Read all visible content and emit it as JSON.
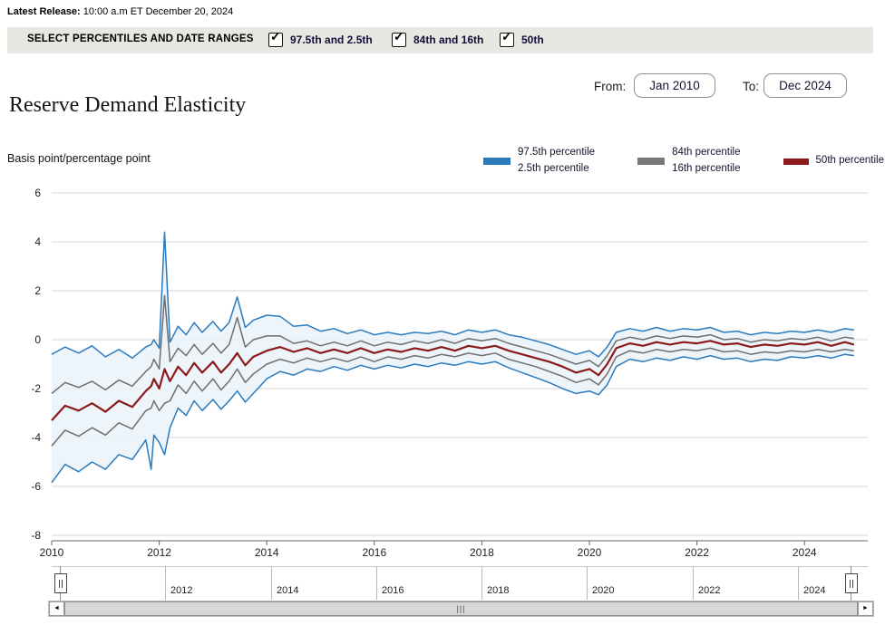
{
  "release": {
    "label": "Latest Release:",
    "value": "10:00 a.m ET December 20, 2024"
  },
  "toolbar": {
    "title": "SELECT PERCENTILES AND DATE RANGES",
    "checkboxes": [
      {
        "label": "97.5th and 2.5th",
        "checked": true
      },
      {
        "label": "84th and 16th",
        "checked": true
      },
      {
        "label": "50th",
        "checked": true
      }
    ]
  },
  "date_range": {
    "from_label": "From:",
    "from_value": "Jan 2010",
    "to_label": "To:",
    "to_value": "Dec 2024"
  },
  "page_title": "Reserve Demand Elasticity",
  "y_axis_unit": "Basis point/percentage point",
  "legend": [
    {
      "line1": "97.5th percentile",
      "line2": "2.5th percentile",
      "color": "#2a7abe"
    },
    {
      "line1": "84th percentile",
      "line2": "16th percentile",
      "color": "#787878"
    },
    {
      "line1": "50th percentile",
      "line2": "",
      "color": "#8a1a1a"
    }
  ],
  "colors": {
    "blue": "#2a7abe",
    "gray": "#6e6e6e",
    "red": "#8a1a1a",
    "band_fill": "#eaf2f9",
    "gridline": "#d4d4d4",
    "axis": "#666666",
    "toolbar_bg": "#e9e7e1"
  },
  "chart_data": {
    "type": "line",
    "title": "Reserve Demand Elasticity",
    "ylabel": "Basis point/percentage point",
    "ylim": [
      -8,
      6
    ],
    "yticks": [
      6,
      4,
      2,
      0,
      -2,
      -4,
      -6,
      -8
    ],
    "xticks": [
      2010,
      2012,
      2014,
      2016,
      2018,
      2020,
      2022,
      2024
    ],
    "xlim": [
      2010,
      2025.2
    ],
    "grid": "horizontal",
    "legend_position": "top-right",
    "x": [
      2010.0,
      2010.25,
      2010.5,
      2010.75,
      2011.0,
      2011.25,
      2011.5,
      2011.75,
      2011.85,
      2011.9,
      2012.0,
      2012.1,
      2012.2,
      2012.35,
      2012.5,
      2012.65,
      2012.8,
      2013.0,
      2013.15,
      2013.3,
      2013.45,
      2013.6,
      2013.75,
      2014.0,
      2014.25,
      2014.5,
      2014.75,
      2015.0,
      2015.25,
      2015.5,
      2015.75,
      2016.0,
      2016.25,
      2016.5,
      2016.75,
      2017.0,
      2017.25,
      2017.5,
      2017.75,
      2018.0,
      2018.25,
      2018.5,
      2018.75,
      2019.0,
      2019.25,
      2019.5,
      2019.75,
      2020.0,
      2020.17,
      2020.33,
      2020.5,
      2020.75,
      2021.0,
      2021.25,
      2021.5,
      2021.75,
      2022.0,
      2022.25,
      2022.5,
      2022.75,
      2023.0,
      2023.25,
      2023.5,
      2023.75,
      2024.0,
      2024.25,
      2024.5,
      2024.75,
      2024.92
    ],
    "series": [
      {
        "name": "97.5th percentile",
        "color": "#2a7abe",
        "values": [
          -0.6,
          -0.3,
          -0.55,
          -0.25,
          -0.7,
          -0.4,
          -0.75,
          -0.3,
          -0.2,
          0.0,
          -0.35,
          4.4,
          -0.1,
          0.55,
          0.2,
          0.7,
          0.3,
          0.75,
          0.35,
          0.7,
          1.75,
          0.5,
          0.8,
          1.0,
          0.95,
          0.55,
          0.6,
          0.35,
          0.45,
          0.25,
          0.4,
          0.2,
          0.3,
          0.2,
          0.3,
          0.25,
          0.35,
          0.2,
          0.4,
          0.3,
          0.4,
          0.2,
          0.1,
          -0.05,
          -0.2,
          -0.4,
          -0.6,
          -0.45,
          -0.7,
          -0.3,
          0.3,
          0.45,
          0.35,
          0.5,
          0.35,
          0.45,
          0.4,
          0.5,
          0.3,
          0.35,
          0.2,
          0.3,
          0.25,
          0.35,
          0.3,
          0.4,
          0.3,
          0.45,
          0.4
        ]
      },
      {
        "name": "84th percentile",
        "color": "#6e6e6e",
        "values": [
          -2.2,
          -1.75,
          -1.95,
          -1.7,
          -2.05,
          -1.65,
          -1.9,
          -1.3,
          -1.1,
          -0.8,
          -1.2,
          1.8,
          -0.9,
          -0.35,
          -0.65,
          -0.2,
          -0.6,
          -0.15,
          -0.55,
          -0.2,
          0.9,
          -0.3,
          0.0,
          0.15,
          0.15,
          -0.15,
          -0.05,
          -0.25,
          -0.1,
          -0.25,
          -0.05,
          -0.25,
          -0.1,
          -0.2,
          -0.05,
          -0.15,
          0.0,
          -0.15,
          0.05,
          -0.05,
          0.05,
          -0.15,
          -0.3,
          -0.45,
          -0.6,
          -0.8,
          -1.0,
          -0.85,
          -1.1,
          -0.65,
          -0.05,
          0.1,
          0.0,
          0.15,
          0.05,
          0.15,
          0.1,
          0.2,
          0.0,
          0.05,
          -0.1,
          0.0,
          -0.05,
          0.05,
          0.0,
          0.1,
          -0.05,
          0.1,
          0.05
        ]
      },
      {
        "name": "50th percentile",
        "color": "#8a1a1a",
        "values": [
          -3.3,
          -2.7,
          -2.9,
          -2.6,
          -2.95,
          -2.5,
          -2.75,
          -2.1,
          -1.9,
          -1.6,
          -2.0,
          -1.2,
          -1.7,
          -1.1,
          -1.45,
          -0.95,
          -1.35,
          -0.9,
          -1.35,
          -1.0,
          -0.55,
          -1.05,
          -0.7,
          -0.45,
          -0.3,
          -0.5,
          -0.35,
          -0.55,
          -0.4,
          -0.55,
          -0.35,
          -0.55,
          -0.4,
          -0.5,
          -0.35,
          -0.45,
          -0.3,
          -0.45,
          -0.25,
          -0.35,
          -0.25,
          -0.45,
          -0.6,
          -0.75,
          -0.9,
          -1.1,
          -1.35,
          -1.2,
          -1.45,
          -1.0,
          -0.35,
          -0.15,
          -0.25,
          -0.1,
          -0.2,
          -0.1,
          -0.15,
          -0.05,
          -0.2,
          -0.15,
          -0.3,
          -0.2,
          -0.25,
          -0.15,
          -0.2,
          -0.1,
          -0.25,
          -0.1,
          -0.2
        ]
      },
      {
        "name": "16th percentile",
        "color": "#6e6e6e",
        "values": [
          -4.35,
          -3.7,
          -3.95,
          -3.6,
          -3.9,
          -3.4,
          -3.65,
          -2.9,
          -2.8,
          -2.5,
          -2.9,
          -2.6,
          -2.5,
          -1.85,
          -2.2,
          -1.7,
          -2.1,
          -1.6,
          -2.05,
          -1.7,
          -1.2,
          -1.75,
          -1.4,
          -1.0,
          -0.8,
          -0.95,
          -0.75,
          -0.9,
          -0.75,
          -0.9,
          -0.7,
          -0.9,
          -0.7,
          -0.8,
          -0.65,
          -0.75,
          -0.6,
          -0.7,
          -0.55,
          -0.65,
          -0.55,
          -0.8,
          -0.95,
          -1.1,
          -1.3,
          -1.5,
          -1.75,
          -1.6,
          -1.85,
          -1.4,
          -0.7,
          -0.45,
          -0.55,
          -0.4,
          -0.5,
          -0.4,
          -0.45,
          -0.35,
          -0.5,
          -0.45,
          -0.6,
          -0.5,
          -0.55,
          -0.45,
          -0.5,
          -0.4,
          -0.5,
          -0.4,
          -0.45
        ]
      },
      {
        "name": "2.5th percentile",
        "color": "#2a7abe",
        "values": [
          -5.85,
          -5.1,
          -5.4,
          -5.0,
          -5.3,
          -4.7,
          -4.9,
          -4.1,
          -5.3,
          -3.9,
          -4.2,
          -4.7,
          -3.6,
          -2.8,
          -3.1,
          -2.5,
          -2.9,
          -2.45,
          -2.85,
          -2.5,
          -2.1,
          -2.55,
          -2.2,
          -1.6,
          -1.3,
          -1.45,
          -1.2,
          -1.3,
          -1.1,
          -1.25,
          -1.05,
          -1.2,
          -1.05,
          -1.15,
          -1.0,
          -1.1,
          -0.95,
          -1.05,
          -0.9,
          -1.0,
          -0.9,
          -1.15,
          -1.35,
          -1.55,
          -1.75,
          -2.0,
          -2.2,
          -2.1,
          -2.25,
          -1.85,
          -1.1,
          -0.8,
          -0.9,
          -0.75,
          -0.85,
          -0.7,
          -0.8,
          -0.65,
          -0.8,
          -0.75,
          -0.9,
          -0.8,
          -0.85,
          -0.7,
          -0.75,
          -0.65,
          -0.75,
          -0.6,
          -0.65
        ]
      }
    ],
    "band_fill_between": [
      "97.5th percentile",
      "2.5th percentile"
    ],
    "band_fill_color": "#eaf2f9"
  },
  "slider": {
    "tick_years": [
      2012,
      2014,
      2016,
      2018,
      2020,
      2022,
      2024
    ],
    "tick_labels": [
      "2012",
      "2014",
      "2016",
      "2018",
      "2020",
      "2022",
      "2024"
    ],
    "range_start_year": 2010,
    "range_end_year": 2025
  },
  "scrollbar": {
    "left_arrow": "◄",
    "right_arrow": "►",
    "grip": "|||"
  }
}
